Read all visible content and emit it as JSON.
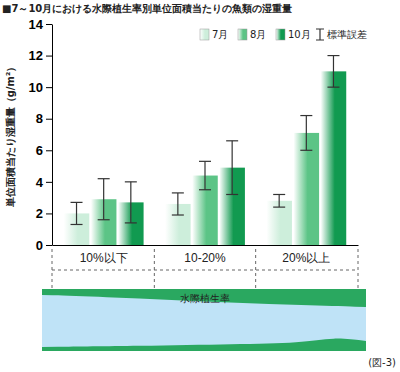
{
  "chart_data": {
    "type": "bar",
    "title": "■7～10月における水際植生率別単位面積当たりの魚類の湿重量",
    "y_label": "単位面積当たり湿重量（g/m²）",
    "x_label": "水際植生率",
    "categories": [
      "10%以下",
      "10-20%",
      "20%以上"
    ],
    "series": [
      {
        "name": "7月",
        "color": "#cdeedb",
        "values": [
          2.0,
          2.6,
          2.8
        ],
        "errors": [
          0.7,
          0.7,
          0.4
        ]
      },
      {
        "name": "8月",
        "color": "#5cc486",
        "values": [
          2.9,
          4.4,
          7.1
        ],
        "errors": [
          1.3,
          0.9,
          1.1
        ]
      },
      {
        "name": "10月",
        "color": "#119a50",
        "values": [
          2.7,
          4.9,
          11.0
        ],
        "errors": [
          1.3,
          1.7,
          1.0
        ]
      }
    ],
    "ylim": [
      0,
      14
    ],
    "yticks": [
      0,
      2,
      4,
      6,
      8,
      10,
      12,
      14
    ],
    "grid": false,
    "legend": "top-right",
    "annotations": [
      "標準誤差",
      "(図-3)"
    ]
  }
}
